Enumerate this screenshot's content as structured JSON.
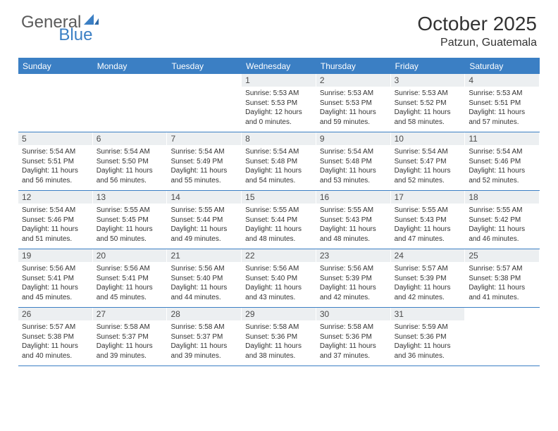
{
  "logo": {
    "general": "General",
    "blue": "Blue"
  },
  "title": "October 2025",
  "location": "Patzun, Guatemala",
  "colors": {
    "header_bg": "#3b7fc4",
    "header_text": "#ffffff",
    "daynum_bg": "#eceff1",
    "text": "#333333",
    "border": "#3b7fc4"
  },
  "fonts": {
    "title_pt": 28,
    "location_pt": 16,
    "dayhead_pt": 12,
    "daynum_pt": 12,
    "cell_pt": 10
  },
  "day_headers": [
    "Sunday",
    "Monday",
    "Tuesday",
    "Wednesday",
    "Thursday",
    "Friday",
    "Saturday"
  ],
  "weeks": [
    [
      {
        "n": "",
        "sr": "",
        "ss": "",
        "dl": ""
      },
      {
        "n": "",
        "sr": "",
        "ss": "",
        "dl": ""
      },
      {
        "n": "",
        "sr": "",
        "ss": "",
        "dl": ""
      },
      {
        "n": "1",
        "sr": "Sunrise: 5:53 AM",
        "ss": "Sunset: 5:53 PM",
        "dl": "Daylight: 12 hours and 0 minutes."
      },
      {
        "n": "2",
        "sr": "Sunrise: 5:53 AM",
        "ss": "Sunset: 5:53 PM",
        "dl": "Daylight: 11 hours and 59 minutes."
      },
      {
        "n": "3",
        "sr": "Sunrise: 5:53 AM",
        "ss": "Sunset: 5:52 PM",
        "dl": "Daylight: 11 hours and 58 minutes."
      },
      {
        "n": "4",
        "sr": "Sunrise: 5:53 AM",
        "ss": "Sunset: 5:51 PM",
        "dl": "Daylight: 11 hours and 57 minutes."
      }
    ],
    [
      {
        "n": "5",
        "sr": "Sunrise: 5:54 AM",
        "ss": "Sunset: 5:51 PM",
        "dl": "Daylight: 11 hours and 56 minutes."
      },
      {
        "n": "6",
        "sr": "Sunrise: 5:54 AM",
        "ss": "Sunset: 5:50 PM",
        "dl": "Daylight: 11 hours and 56 minutes."
      },
      {
        "n": "7",
        "sr": "Sunrise: 5:54 AM",
        "ss": "Sunset: 5:49 PM",
        "dl": "Daylight: 11 hours and 55 minutes."
      },
      {
        "n": "8",
        "sr": "Sunrise: 5:54 AM",
        "ss": "Sunset: 5:48 PM",
        "dl": "Daylight: 11 hours and 54 minutes."
      },
      {
        "n": "9",
        "sr": "Sunrise: 5:54 AM",
        "ss": "Sunset: 5:48 PM",
        "dl": "Daylight: 11 hours and 53 minutes."
      },
      {
        "n": "10",
        "sr": "Sunrise: 5:54 AM",
        "ss": "Sunset: 5:47 PM",
        "dl": "Daylight: 11 hours and 52 minutes."
      },
      {
        "n": "11",
        "sr": "Sunrise: 5:54 AM",
        "ss": "Sunset: 5:46 PM",
        "dl": "Daylight: 11 hours and 52 minutes."
      }
    ],
    [
      {
        "n": "12",
        "sr": "Sunrise: 5:54 AM",
        "ss": "Sunset: 5:46 PM",
        "dl": "Daylight: 11 hours and 51 minutes."
      },
      {
        "n": "13",
        "sr": "Sunrise: 5:55 AM",
        "ss": "Sunset: 5:45 PM",
        "dl": "Daylight: 11 hours and 50 minutes."
      },
      {
        "n": "14",
        "sr": "Sunrise: 5:55 AM",
        "ss": "Sunset: 5:44 PM",
        "dl": "Daylight: 11 hours and 49 minutes."
      },
      {
        "n": "15",
        "sr": "Sunrise: 5:55 AM",
        "ss": "Sunset: 5:44 PM",
        "dl": "Daylight: 11 hours and 48 minutes."
      },
      {
        "n": "16",
        "sr": "Sunrise: 5:55 AM",
        "ss": "Sunset: 5:43 PM",
        "dl": "Daylight: 11 hours and 48 minutes."
      },
      {
        "n": "17",
        "sr": "Sunrise: 5:55 AM",
        "ss": "Sunset: 5:43 PM",
        "dl": "Daylight: 11 hours and 47 minutes."
      },
      {
        "n": "18",
        "sr": "Sunrise: 5:55 AM",
        "ss": "Sunset: 5:42 PM",
        "dl": "Daylight: 11 hours and 46 minutes."
      }
    ],
    [
      {
        "n": "19",
        "sr": "Sunrise: 5:56 AM",
        "ss": "Sunset: 5:41 PM",
        "dl": "Daylight: 11 hours and 45 minutes."
      },
      {
        "n": "20",
        "sr": "Sunrise: 5:56 AM",
        "ss": "Sunset: 5:41 PM",
        "dl": "Daylight: 11 hours and 45 minutes."
      },
      {
        "n": "21",
        "sr": "Sunrise: 5:56 AM",
        "ss": "Sunset: 5:40 PM",
        "dl": "Daylight: 11 hours and 44 minutes."
      },
      {
        "n": "22",
        "sr": "Sunrise: 5:56 AM",
        "ss": "Sunset: 5:40 PM",
        "dl": "Daylight: 11 hours and 43 minutes."
      },
      {
        "n": "23",
        "sr": "Sunrise: 5:56 AM",
        "ss": "Sunset: 5:39 PM",
        "dl": "Daylight: 11 hours and 42 minutes."
      },
      {
        "n": "24",
        "sr": "Sunrise: 5:57 AM",
        "ss": "Sunset: 5:39 PM",
        "dl": "Daylight: 11 hours and 42 minutes."
      },
      {
        "n": "25",
        "sr": "Sunrise: 5:57 AM",
        "ss": "Sunset: 5:38 PM",
        "dl": "Daylight: 11 hours and 41 minutes."
      }
    ],
    [
      {
        "n": "26",
        "sr": "Sunrise: 5:57 AM",
        "ss": "Sunset: 5:38 PM",
        "dl": "Daylight: 11 hours and 40 minutes."
      },
      {
        "n": "27",
        "sr": "Sunrise: 5:58 AM",
        "ss": "Sunset: 5:37 PM",
        "dl": "Daylight: 11 hours and 39 minutes."
      },
      {
        "n": "28",
        "sr": "Sunrise: 5:58 AM",
        "ss": "Sunset: 5:37 PM",
        "dl": "Daylight: 11 hours and 39 minutes."
      },
      {
        "n": "29",
        "sr": "Sunrise: 5:58 AM",
        "ss": "Sunset: 5:36 PM",
        "dl": "Daylight: 11 hours and 38 minutes."
      },
      {
        "n": "30",
        "sr": "Sunrise: 5:58 AM",
        "ss": "Sunset: 5:36 PM",
        "dl": "Daylight: 11 hours and 37 minutes."
      },
      {
        "n": "31",
        "sr": "Sunrise: 5:59 AM",
        "ss": "Sunset: 5:36 PM",
        "dl": "Daylight: 11 hours and 36 minutes."
      },
      {
        "n": "",
        "sr": "",
        "ss": "",
        "dl": ""
      }
    ]
  ]
}
